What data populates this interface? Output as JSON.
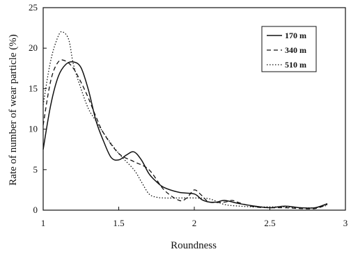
{
  "chart_data": {
    "type": "line",
    "title": "",
    "xlabel": "Roundness",
    "ylabel": "Rate of number of wear particle (%)",
    "xlim": [
      1,
      3
    ],
    "ylim": [
      0,
      25
    ],
    "x_ticks": [
      "1",
      "1.5",
      "2",
      "2.5",
      "3"
    ],
    "y_ticks": [
      "0",
      "5",
      "10",
      "15",
      "20",
      "25"
    ],
    "grid": false,
    "legend_position": "top-right",
    "series": [
      {
        "name": "170 m",
        "style": "solid",
        "x": [
          1.0,
          1.05,
          1.1,
          1.15,
          1.2,
          1.25,
          1.3,
          1.35,
          1.4,
          1.45,
          1.5,
          1.55,
          1.6,
          1.65,
          1.7,
          1.75,
          1.8,
          1.9,
          2.0,
          2.05,
          2.1,
          2.15,
          2.2,
          2.3,
          2.4,
          2.5,
          2.6,
          2.7,
          2.8,
          2.88
        ],
        "y": [
          7.5,
          13.0,
          16.5,
          18.0,
          18.3,
          17.6,
          14.8,
          11.0,
          8.5,
          6.5,
          6.2,
          6.8,
          7.2,
          6.2,
          4.5,
          3.5,
          2.8,
          2.2,
          2.0,
          1.3,
          1.0,
          1.0,
          1.2,
          0.8,
          0.5,
          0.3,
          0.5,
          0.3,
          0.3,
          0.8
        ]
      },
      {
        "name": "340 m",
        "style": "dashed",
        "x": [
          1.0,
          1.05,
          1.1,
          1.15,
          1.2,
          1.25,
          1.3,
          1.35,
          1.4,
          1.5,
          1.6,
          1.7,
          1.8,
          1.9,
          1.95,
          2.0,
          2.05,
          2.1,
          2.2,
          2.25,
          2.3,
          2.4,
          2.5,
          2.6,
          2.7,
          2.8,
          2.88
        ],
        "y": [
          10.5,
          16.0,
          18.3,
          18.4,
          17.5,
          15.8,
          13.8,
          11.5,
          9.5,
          7.0,
          6.0,
          5.0,
          2.5,
          1.2,
          1.5,
          2.5,
          1.8,
          1.0,
          1.0,
          1.2,
          0.9,
          0.4,
          0.3,
          0.3,
          0.2,
          0.2,
          0.7
        ]
      },
      {
        "name": "510 m",
        "style": "dotted",
        "x": [
          1.0,
          1.05,
          1.1,
          1.13,
          1.17,
          1.2,
          1.25,
          1.3,
          1.35,
          1.4,
          1.5,
          1.6,
          1.65,
          1.7,
          1.75,
          1.8,
          1.9,
          2.0,
          2.1,
          2.2,
          2.3,
          2.4,
          2.5,
          2.6,
          2.7,
          2.8,
          2.88
        ],
        "y": [
          13.0,
          18.5,
          21.5,
          22.0,
          21.0,
          18.0,
          15.0,
          12.5,
          11.0,
          9.5,
          7.0,
          5.0,
          3.5,
          2.0,
          1.6,
          1.5,
          1.5,
          1.5,
          1.4,
          0.7,
          0.5,
          0.4,
          0.4,
          0.4,
          0.3,
          0.3,
          0.6
        ]
      }
    ]
  }
}
